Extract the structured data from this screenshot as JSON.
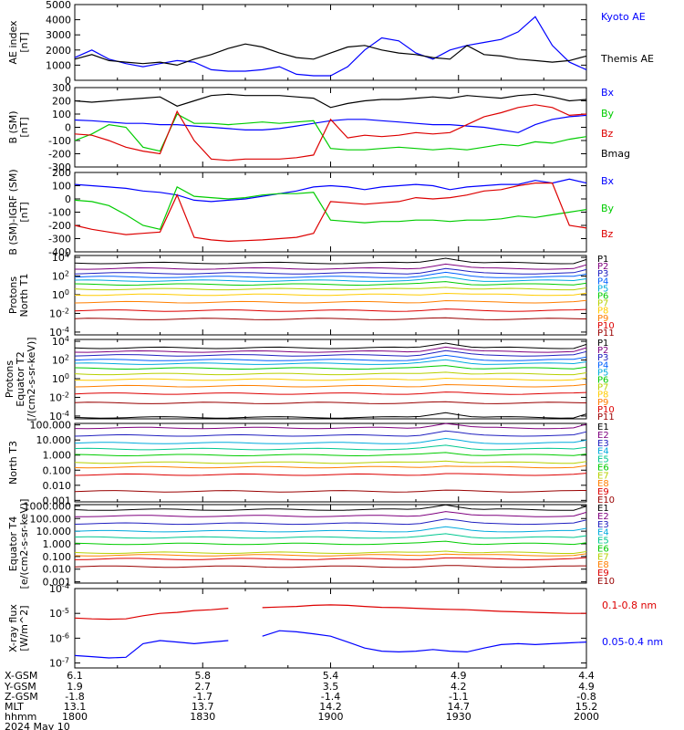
{
  "colors": {
    "black": "#000000",
    "blue": "#0000ff",
    "green": "#00cc00",
    "red": "#dd0000",
    "p_palette": [
      "#000000",
      "#7f007f",
      "#1f1fbf",
      "#0060ff",
      "#00aadd",
      "#00c890",
      "#00cc00",
      "#b7d000",
      "#ffcc00",
      "#ff7f00",
      "#dd0000",
      "#990000"
    ]
  },
  "chart_data": [
    {
      "type": "line",
      "ylabel": [
        "AE index",
        "[nT]"
      ],
      "ylim": [
        0,
        5000
      ],
      "yticks": [
        "0",
        "1000",
        "2000",
        "3000",
        "4000",
        "5000"
      ],
      "x_time": [
        1800,
        1804,
        1808,
        1812,
        1816,
        1820,
        1824,
        1828,
        1832,
        1836,
        1840,
        1844,
        1848,
        1852,
        1856,
        1900,
        1904,
        1908,
        1912,
        1916,
        1920,
        1924,
        1928,
        1932,
        1936,
        1940,
        1944,
        1948,
        1952,
        1956,
        2000
      ],
      "series": [
        {
          "name": "Kyoto AE",
          "color": "blue",
          "values": [
            1500,
            2000,
            1400,
            1100,
            900,
            1100,
            1300,
            1200,
            700,
            600,
            600,
            700,
            900,
            400,
            300,
            300,
            900,
            2000,
            2800,
            2600,
            1800,
            1400,
            2000,
            2300,
            2500,
            2700,
            3200,
            4200,
            2300,
            1200,
            700
          ]
        },
        {
          "name": "Themis AE",
          "color": "black",
          "values": [
            1400,
            1700,
            1300,
            1200,
            1100,
            1200,
            1000,
            1400,
            1700,
            2100,
            2400,
            2200,
            1800,
            1500,
            1400,
            1800,
            2200,
            2300,
            2000,
            1800,
            1700,
            1500,
            1400,
            2300,
            1700,
            1600,
            1400,
            1300,
            1200,
            1300,
            1600
          ]
        }
      ]
    },
    {
      "type": "line",
      "ylabel": [
        "B (SM)",
        "[nT]"
      ],
      "ylim": [
        -300,
        300
      ],
      "yticks": [
        "-300",
        "-200",
        "-100",
        "0",
        "100",
        "200",
        "300"
      ],
      "x_time": [
        1800,
        1804,
        1808,
        1812,
        1816,
        1820,
        1824,
        1828,
        1832,
        1836,
        1840,
        1844,
        1848,
        1852,
        1856,
        1900,
        1904,
        1908,
        1912,
        1916,
        1920,
        1924,
        1928,
        1932,
        1936,
        1940,
        1944,
        1948,
        1952,
        1956,
        2000
      ],
      "series": [
        {
          "name": "Bx",
          "color": "blue",
          "values": [
            55,
            50,
            40,
            30,
            30,
            20,
            20,
            10,
            0,
            -10,
            -20,
            -20,
            -10,
            10,
            30,
            50,
            60,
            60,
            50,
            40,
            30,
            20,
            20,
            10,
            0,
            -20,
            -40,
            20,
            60,
            80,
            90
          ]
        },
        {
          "name": "By",
          "color": "green",
          "values": [
            -100,
            -50,
            20,
            0,
            -150,
            -180,
            100,
            30,
            30,
            20,
            30,
            40,
            30,
            40,
            50,
            -160,
            -170,
            -170,
            -160,
            -150,
            -160,
            -170,
            -160,
            -170,
            -150,
            -130,
            -140,
            -110,
            -120,
            -90,
            -70
          ]
        },
        {
          "name": "Bz",
          "color": "red",
          "values": [
            -50,
            -60,
            -100,
            -150,
            -180,
            -200,
            120,
            -100,
            -240,
            -250,
            -240,
            -240,
            -240,
            -230,
            -210,
            60,
            -80,
            -60,
            -70,
            -60,
            -40,
            -50,
            -40,
            20,
            80,
            110,
            150,
            170,
            150,
            90,
            100
          ]
        },
        {
          "name": "Bmag",
          "color": "black",
          "values": [
            200,
            190,
            200,
            210,
            220,
            230,
            160,
            200,
            240,
            250,
            240,
            240,
            240,
            230,
            220,
            150,
            180,
            200,
            210,
            210,
            220,
            230,
            220,
            240,
            230,
            220,
            240,
            250,
            230,
            200,
            210
          ]
        }
      ]
    },
    {
      "type": "line",
      "ylabel": [
        "B (SM)-IGRF (SM)",
        "[nT]"
      ],
      "ylim": [
        -400,
        200
      ],
      "yticks": [
        "-400",
        "-300",
        "-200",
        "-100",
        "0",
        "100",
        "200"
      ],
      "x_time": [
        1800,
        1804,
        1808,
        1812,
        1816,
        1820,
        1824,
        1828,
        1832,
        1836,
        1840,
        1844,
        1848,
        1852,
        1856,
        1900,
        1904,
        1908,
        1912,
        1916,
        1920,
        1924,
        1928,
        1932,
        1936,
        1940,
        1944,
        1948,
        1952,
        1956,
        2000
      ],
      "series": [
        {
          "name": "Bx",
          "color": "blue",
          "values": [
            110,
            100,
            90,
            80,
            60,
            50,
            30,
            -10,
            -20,
            -10,
            0,
            20,
            40,
            60,
            90,
            100,
            90,
            70,
            90,
            100,
            110,
            100,
            70,
            90,
            100,
            110,
            110,
            140,
            120,
            150,
            120
          ]
        },
        {
          "name": "By",
          "color": "green",
          "values": [
            -10,
            -20,
            -50,
            -120,
            -200,
            -230,
            90,
            20,
            10,
            0,
            10,
            30,
            40,
            40,
            50,
            -160,
            -170,
            -180,
            -170,
            -170,
            -160,
            -160,
            -170,
            -160,
            -160,
            -150,
            -130,
            -140,
            -120,
            -100,
            -80
          ]
        },
        {
          "name": "Bz",
          "color": "red",
          "values": [
            -200,
            -230,
            -250,
            -270,
            -260,
            -250,
            30,
            -290,
            -310,
            -320,
            -315,
            -310,
            -300,
            -290,
            -260,
            -20,
            -30,
            -40,
            -30,
            -20,
            10,
            0,
            10,
            30,
            60,
            70,
            100,
            120,
            120,
            -200,
            -220
          ]
        }
      ]
    },
    {
      "type": "line",
      "log_scale": true,
      "ylabel": [
        "Protons",
        "North T1"
      ],
      "yticks": [
        "10^-4",
        "10^-2",
        "10^0",
        "10^2",
        "10^4"
      ],
      "series": [
        {
          "name": "P1",
          "level": 3.4
        },
        {
          "name": "P2",
          "level": 2.8
        },
        {
          "name": "P3",
          "level": 2.3
        },
        {
          "name": "P4",
          "level": 1.9
        },
        {
          "name": "P5",
          "level": 1.5
        },
        {
          "name": "P6",
          "level": 1.1
        },
        {
          "name": "P7",
          "level": 0.6
        },
        {
          "name": "P8",
          "level": 0.0
        },
        {
          "name": "P9",
          "level": -0.8
        },
        {
          "name": "P10",
          "level": -1.7
        },
        {
          "name": "P11",
          "level": -2.6
        }
      ]
    },
    {
      "type": "line",
      "log_scale": true,
      "ylabel": [
        "Protons",
        "Equator T2",
        "[/(cm2-s-sr-keV)]"
      ],
      "yticks": [
        "10^-4",
        "10^-2",
        "10^0",
        "10^2",
        "10^4"
      ],
      "series": [
        {
          "name": "P1",
          "level": 3.3
        },
        {
          "name": "P2",
          "level": 2.9
        },
        {
          "name": "P3",
          "level": 2.5
        },
        {
          "name": "P4",
          "level": 2.0
        },
        {
          "name": "P5",
          "level": 1.6
        },
        {
          "name": "P6",
          "level": 1.1
        },
        {
          "name": "P7",
          "level": 0.5
        },
        {
          "name": "P8",
          "level": -0.1
        },
        {
          "name": "P9",
          "level": -0.8
        },
        {
          "name": "P10",
          "level": -1.6
        },
        {
          "name": "P11",
          "level": -2.6
        }
      ]
    },
    {
      "type": "line",
      "log_scale": true,
      "ylabel": [
        "North T3"
      ],
      "yticks": [
        "0.001",
        "0.010",
        "0.100",
        "1.000",
        "10.000",
        "100.000"
      ],
      "series": [
        {
          "name": "E1",
          "level": 2.5
        },
        {
          "name": "E2",
          "level": 1.8
        },
        {
          "name": "E3",
          "level": 1.3
        },
        {
          "name": "E4",
          "level": 0.8
        },
        {
          "name": "E5",
          "level": 0.4
        },
        {
          "name": "E6",
          "level": 0.0
        },
        {
          "name": "E7",
          "level": -0.5
        },
        {
          "name": "E8",
          "level": -0.8
        },
        {
          "name": "E9",
          "level": -1.3
        },
        {
          "name": "E10",
          "level": -2.4
        }
      ]
    },
    {
      "type": "line",
      "log_scale": true,
      "ylabel": [
        "Equator T4",
        "[e/(cm2-s-sr-keV)]"
      ],
      "yticks": [
        "0.001",
        "0.010",
        "0.100",
        "1.000",
        "10.000",
        "100.000",
        "1000.000"
      ],
      "series": [
        {
          "name": "E1",
          "level": 2.7
        },
        {
          "name": "E2",
          "level": 2.2
        },
        {
          "name": "E3",
          "level": 1.6
        },
        {
          "name": "E4",
          "level": 1.0
        },
        {
          "name": "E5",
          "level": 0.5
        },
        {
          "name": "E6",
          "level": 0.0
        },
        {
          "name": "E7",
          "level": -0.7
        },
        {
          "name": "E8",
          "level": -0.9
        },
        {
          "name": "E9",
          "level": -1.2
        },
        {
          "name": "E10",
          "level": -1.8
        }
      ]
    },
    {
      "type": "line",
      "log_scale": true,
      "ylabel": [
        "X-ray flux",
        "[W/m^2]"
      ],
      "yticks": [
        "10^-7",
        "10^-6",
        "10^-5",
        "10^-4"
      ],
      "x_time": [
        1800,
        1804,
        1808,
        1812,
        1816,
        1820,
        1824,
        1828,
        1832,
        1836,
        1840,
        1844,
        1848,
        1852,
        1856,
        1900,
        1904,
        1908,
        1912,
        1916,
        1920,
        1924,
        1928,
        1932,
        1936,
        1940,
        1944,
        1948,
        1952,
        1956,
        2000
      ],
      "series": [
        {
          "name": "0.1-0.8 nm",
          "color": "red",
          "values": [
            6.5e-06,
            6e-06,
            5.8e-06,
            6e-06,
            8e-06,
            1e-05,
            1.1e-05,
            1.3e-05,
            1.4e-05,
            1.6e-05,
            null,
            1.7e-05,
            1.8e-05,
            1.9e-05,
            2.1e-05,
            2.2e-05,
            2.1e-05,
            1.9e-05,
            1.75e-05,
            1.7e-05,
            1.6e-05,
            1.5e-05,
            1.45e-05,
            1.4e-05,
            1.3e-05,
            1.2e-05,
            1.15e-05,
            1.1e-05,
            1.05e-05,
            1e-05,
            1e-05
          ]
        },
        {
          "name": "0.05-0.4 nm",
          "color": "blue",
          "values": [
            2e-07,
            1.8e-07,
            1.6e-07,
            1.7e-07,
            6e-07,
            8e-07,
            7e-07,
            6e-07,
            7e-07,
            8e-07,
            null,
            1.2e-06,
            2e-06,
            1.8e-06,
            1.5e-06,
            1.2e-06,
            7e-07,
            4e-07,
            3e-07,
            2.8e-07,
            3e-07,
            3.5e-07,
            3e-07,
            2.8e-07,
            4e-07,
            5.5e-07,
            6e-07,
            5.5e-07,
            6e-07,
            6.5e-07,
            7e-07
          ]
        }
      ]
    }
  ],
  "orbit_table": {
    "labels": [
      "X-GSM",
      "Y-GSM",
      "Z-GSM",
      "MLT",
      "hhmm"
    ],
    "columns": [
      {
        "values": [
          "6.1",
          "1.9",
          "-1.8",
          "13.1",
          "1800"
        ]
      },
      {
        "values": [
          "5.8",
          "2.7",
          "-1.7",
          "13.7",
          "1830"
        ]
      },
      {
        "values": [
          "5.4",
          "3.5",
          "-1.4",
          "14.2",
          "1900"
        ]
      },
      {
        "values": [
          "4.9",
          "4.2",
          "-1.1",
          "14.7",
          "1930"
        ]
      },
      {
        "values": [
          "4.4",
          "4.9",
          "-0.8",
          "15.2",
          "2000"
        ]
      }
    ],
    "date": "2024 May 10"
  }
}
